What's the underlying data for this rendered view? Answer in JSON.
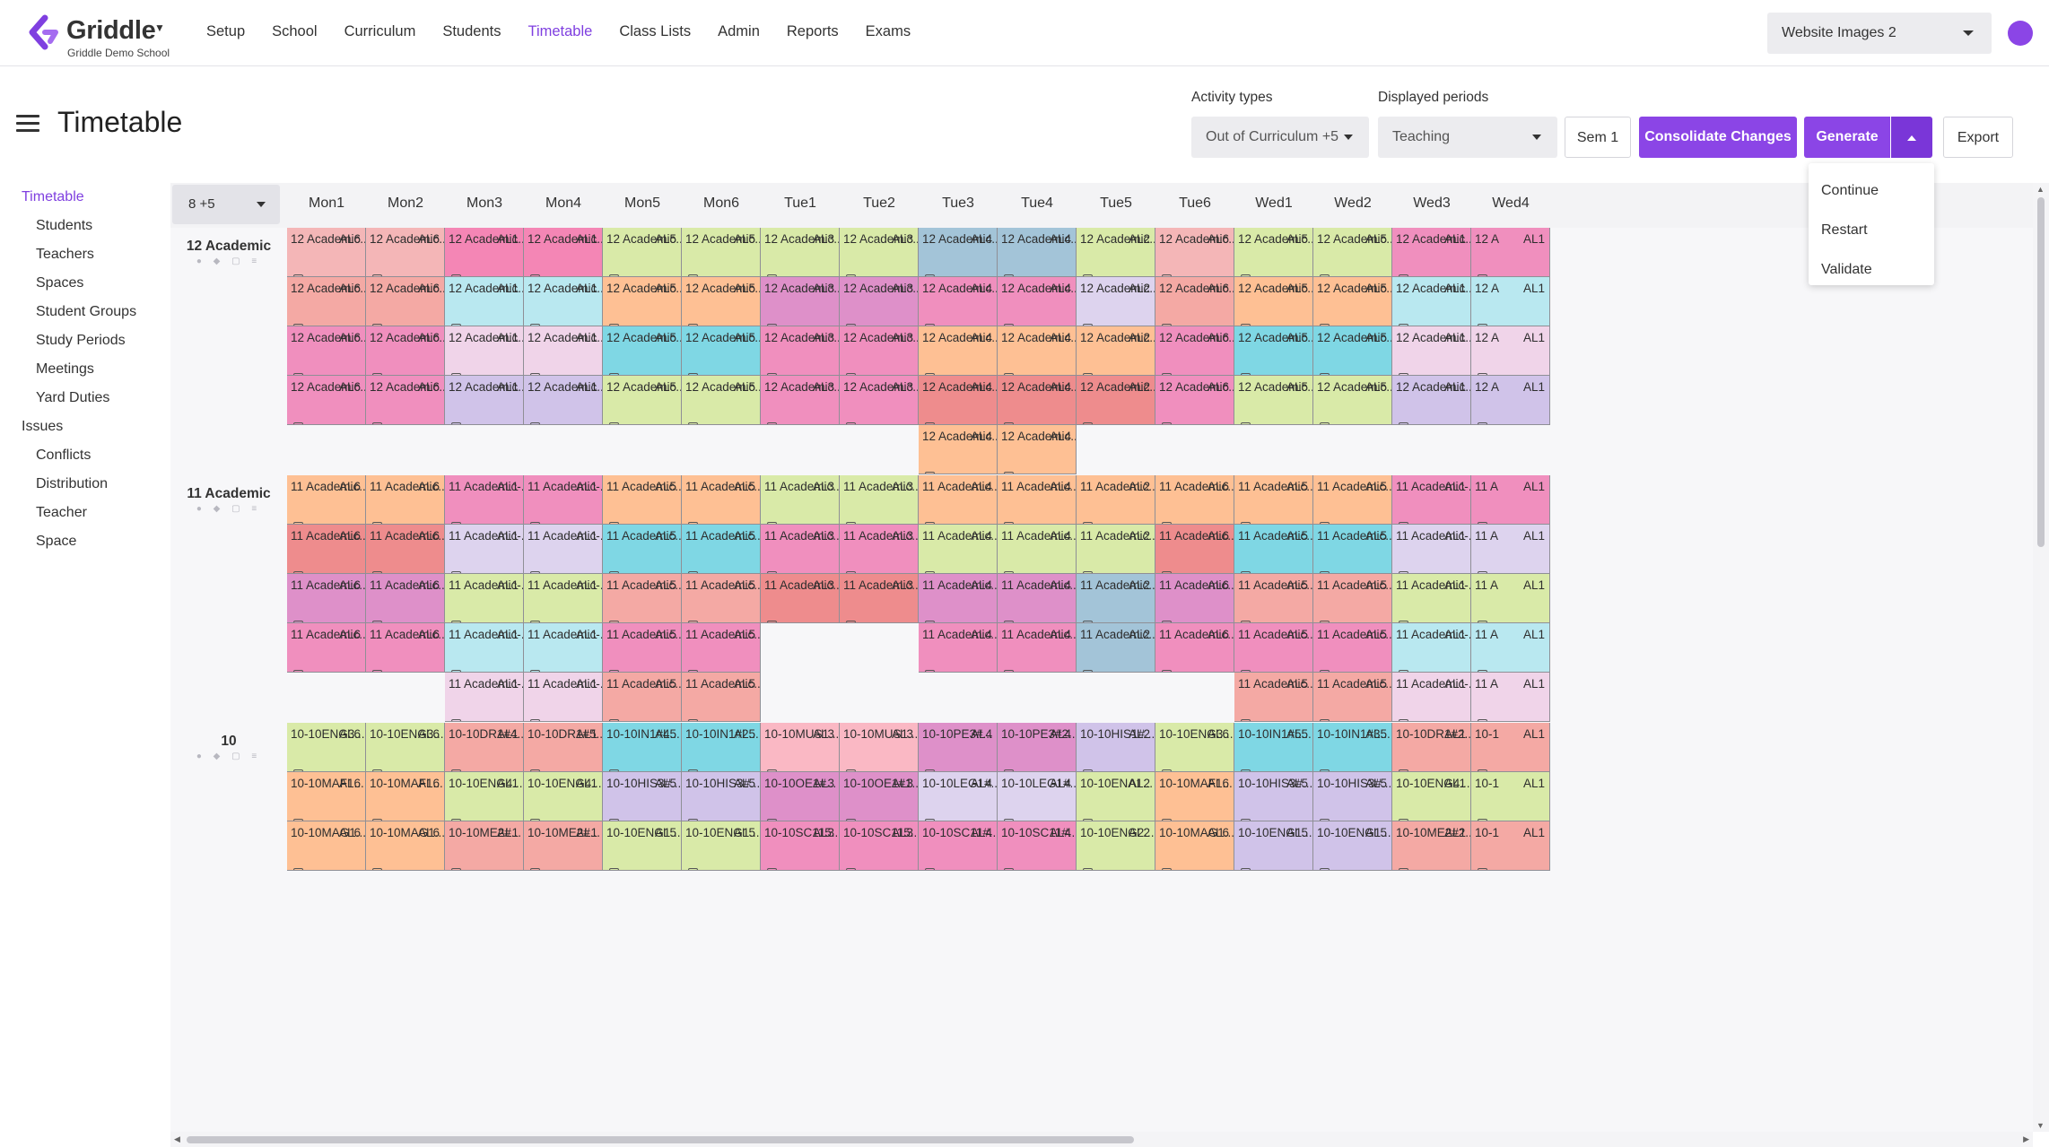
{
  "brand": {
    "name": "Griddle",
    "school": "Griddle Demo School",
    "primary_color": "#8b45e6"
  },
  "nav": {
    "items": [
      "Setup",
      "School",
      "Curriculum",
      "Students",
      "Timetable",
      "Class Lists",
      "Admin",
      "Reports",
      "Exams"
    ],
    "active": "Timetable",
    "workspace": "Website Images 2"
  },
  "header": {
    "title": "Timetable",
    "activity_types_label": "Activity types",
    "activity_types_value": "Out of Curriculum +5",
    "displayed_periods_label": "Displayed periods",
    "displayed_periods_value": "Teaching",
    "sem_button": "Sem 1",
    "consolidate_button": "Consolidate Changes",
    "generate_button": "Generate",
    "export_button": "Export",
    "generate_menu": [
      "Continue",
      "Restart",
      "Validate"
    ]
  },
  "sidebar": {
    "sections": [
      {
        "label": "Timetable",
        "active": true,
        "items": [
          "Students",
          "Teachers",
          "Spaces",
          "Student Groups",
          "Study Periods",
          "Meetings",
          "Yard Duties"
        ]
      },
      {
        "label": "Issues",
        "active": false,
        "items": [
          "Conflicts",
          "Distribution",
          "Teacher",
          "Space"
        ]
      }
    ]
  },
  "grid": {
    "filter": "8 +5",
    "periods": [
      "Mon1",
      "Mon2",
      "Mon3",
      "Mon4",
      "Mon5",
      "Mon6",
      "Tue1",
      "Tue2",
      "Tue3",
      "Tue4",
      "Tue5",
      "Tue6",
      "Wed1",
      "Wed2",
      "Wed3",
      "Wed4"
    ],
    "teachers": [
      "AL6",
      "AL6",
      "AL1",
      "AL1",
      "AL5",
      "AL5",
      "AL3",
      "AL3",
      "AL4",
      "AL4",
      "AL2",
      "AL6",
      "AL5",
      "AL5",
      "AL1",
      "AL1"
    ],
    "colors": {
      "A": "#f4b6b7",
      "B": "#f486b5",
      "C": "#d9eaa8",
      "D": "#a3c4d8",
      "E": "#f08fbe",
      "F": "#f4a9a4",
      "G": "#b9e8f0",
      "H": "#fec094",
      "I": "#de90c9",
      "J": "#ddd3ee",
      "K": "#fab8c4",
      "L": "#7fd7e4",
      "M": "#f0d4e9",
      "N": "#d0c3e9",
      "O": "#ee8c8d"
    },
    "groups": [
      {
        "label": "12 Academic",
        "rows": [
          {
            "names": [
              "12 Academic...",
              "12 Academic...",
              "12 Academic...",
              "12 Academic...",
              "12 Academic...",
              "12 Academic...",
              "12 Academic...",
              "12 Academic...",
              "12 Academic...",
              "12 Academic...",
              "12 Academic...",
              "12 Academic...",
              "12 Academic...",
              "12 Academic...",
              "12 Academic...",
              "12 A"
            ],
            "colors": [
              "A",
              "A",
              "B",
              "B",
              "C",
              "C",
              "C",
              "C",
              "D",
              "D",
              "C",
              "A",
              "C",
              "C",
              "E",
              "E"
            ]
          },
          {
            "names": [
              "12 Academic...",
              "12 Academic...",
              "12 Academic...",
              "12 Academic...",
              "12 Academic...",
              "12 Academic...",
              "12 Academic...",
              "12 Academic...",
              "12 Academic...",
              "12 Academic...",
              "12 Academic...",
              "12 Academic...",
              "12 Academic...",
              "12 Academic...",
              "12 Academic...",
              "12 A"
            ],
            "colors": [
              "F",
              "F",
              "G",
              "G",
              "H",
              "H",
              "I",
              "I",
              "E",
              "E",
              "J",
              "F",
              "H",
              "H",
              "G",
              "G"
            ]
          },
          {
            "names": [
              "12 Academic...",
              "12 Academic...",
              "12 Academic...",
              "12 Academic...",
              "12 Academic...",
              "12 Academic...",
              "12 Academic...",
              "12 Academic...",
              "12 Academic...",
              "12 Academic...",
              "12 Academic...",
              "12 Academic...",
              "12 Academic...",
              "12 Academic...",
              "12 Academic...",
              "12 A"
            ],
            "colors": [
              "E",
              "E",
              "M",
              "M",
              "L",
              "L",
              "E",
              "E",
              "H",
              "H",
              "H",
              "E",
              "L",
              "L",
              "M",
              "M"
            ]
          },
          {
            "names": [
              "12 Academic...",
              "12 Academic...",
              "12 Academic...",
              "12 Academic...",
              "12 Academic...",
              "12 Academic...",
              "12 Academic...",
              "12 Academic...",
              "12 Academic...",
              "12 Academic...",
              "12 Academic...",
              "12 Academic...",
              "12 Academic...",
              "12 Academic...",
              "12 Academic...",
              "12 A"
            ],
            "colors": [
              "E",
              "E",
              "N",
              "N",
              "C",
              "C",
              "E",
              "E",
              "O",
              "O",
              "O",
              "E",
              "C",
              "C",
              "N",
              "N"
            ]
          },
          {
            "names": [
              "",
              "",
              "",
              "",
              "",
              "",
              "",
              "",
              "12 Academic...",
              "12 Academic...",
              "",
              "",
              "",
              "",
              "",
              ""
            ],
            "colors": [
              "",
              "",
              "",
              "",
              "",
              "",
              "",
              "",
              "H",
              "H",
              "",
              "",
              "",
              "",
              "",
              ""
            ]
          }
        ]
      },
      {
        "label": "11 Academic",
        "rows": [
          {
            "names": [
              "11 Academic...",
              "11 Academic...",
              "11 Academic-...",
              "11 Academic-...",
              "11 Academic...",
              "11 Academic...",
              "11 Academic...",
              "11 Academic...",
              "11 Academic...",
              "11 Academic...",
              "11 Academic...",
              "11 Academic...",
              "11 Academic...",
              "11 Academic...",
              "11 Academic-...",
              "11 A"
            ],
            "colors": [
              "H",
              "H",
              "E",
              "E",
              "H",
              "H",
              "C",
              "C",
              "H",
              "H",
              "H",
              "H",
              "H",
              "H",
              "E",
              "E"
            ]
          },
          {
            "names": [
              "11 Academic...",
              "11 Academic...",
              "11 Academic-...",
              "11 Academic-...",
              "11 Academic...",
              "11 Academic...",
              "11 Academic...",
              "11 Academic...",
              "11 Academic...",
              "11 Academic...",
              "11 Academic...",
              "11 Academic...",
              "11 Academic...",
              "11 Academic...",
              "11 Academic-...",
              "11 A"
            ],
            "colors": [
              "O",
              "O",
              "J",
              "J",
              "L",
              "L",
              "E",
              "E",
              "C",
              "C",
              "C",
              "O",
              "L",
              "L",
              "J",
              "J"
            ]
          },
          {
            "names": [
              "11 Academic...",
              "11 Academic...",
              "11 Academic-...",
              "11 Academic-...",
              "11 Academic...",
              "11 Academic...",
              "11 Academic...",
              "11 Academic...",
              "11 Academic...",
              "11 Academic...",
              "11 Academic...",
              "11 Academic...",
              "11 Academic...",
              "11 Academic...",
              "11 Academic-...",
              "11 A"
            ],
            "colors": [
              "I",
              "I",
              "C",
              "C",
              "F",
              "F",
              "O",
              "O",
              "I",
              "I",
              "D",
              "I",
              "F",
              "F",
              "C",
              "C"
            ]
          },
          {
            "names": [
              "11 Academic...",
              "11 Academic...",
              "11 Academic-...",
              "11 Academic-...",
              "11 Academic...",
              "11 Academic...",
              "",
              "",
              "11 Academic...",
              "11 Academic...",
              "11 Academic...",
              "11 Academic...",
              "11 Academic...",
              "11 Academic...",
              "11 Academic-...",
              "11 A"
            ],
            "colors": [
              "E",
              "E",
              "G",
              "G",
              "E",
              "E",
              "",
              "",
              "E",
              "E",
              "D",
              "E",
              "E",
              "E",
              "G",
              "G"
            ]
          },
          {
            "names": [
              "",
              "",
              "11 Academic-...",
              "11 Academic-...",
              "11 Academic...",
              "11 Academic...",
              "",
              "",
              "",
              "",
              "",
              "",
              "11 Academic...",
              "11 Academic...",
              "11 Academic-...",
              "11 A"
            ],
            "colors": [
              "",
              "",
              "M",
              "M",
              "F",
              "F",
              "",
              "",
              "",
              "",
              "",
              "",
              "F",
              "F",
              "M",
              "M"
            ]
          }
        ]
      },
      {
        "label": "10",
        "rows": [
          {
            "names": [
              "10-10ENG3...",
              "10-10ENG3...",
              "10-10DR1#4...",
              "10-10DR1#5...",
              "10-10IN1#4...",
              "10-10IN1#2...",
              "10-10MUS1...",
              "10-10MUS1...",
              "10-10PE3#...",
              "10-10PE3#2...",
              "10-10HIS1#...",
              "10-10ENG3...",
              "10-10IN1#5...",
              "10-10IN1#3...",
              "10-10DR1#2...",
              "10-1"
            ],
            "colors": [
              "C",
              "C",
              "F",
              "F",
              "L",
              "L",
              "K",
              "K",
              "I",
              "I",
              "N",
              "C",
              "L",
              "L",
              "F",
              "F"
            ]
          },
          {
            "names": [
              "10-10MAF1...",
              "10-10MAF1...",
              "10-10ENG4...",
              "10-10ENG4...",
              "10-10HIS3#...",
              "10-10HIS3#...",
              "10-10OE1#...",
              "10-10OE1#1...",
              "10-10LEG1#...",
              "10-10LEG1#...",
              "10-10ENA1...",
              "10-10MAF1...",
              "10-10HIS3#...",
              "10-10HIS3#...",
              "10-10ENG4...",
              "10-1"
            ],
            "colors": [
              "H",
              "H",
              "C",
              "C",
              "N",
              "N",
              "I",
              "I",
              "J",
              "J",
              "C",
              "H",
              "N",
              "N",
              "C",
              "C"
            ]
          },
          {
            "names": [
              "10-10MAG1...",
              "10-10MAG1...",
              "10-10ME2#...",
              "10-10ME2#...",
              "10-10ENG1...",
              "10-10ENG1...",
              "10-10SC115...",
              "10-10SC115...",
              "10-10SC11#...",
              "10-10SC11#...",
              "10-10ENG2...",
              "10-10MAG1...",
              "10-10ENG1...",
              "10-10ENG1...",
              "10-10ME2#2...",
              "10-1"
            ],
            "colors": [
              "H",
              "H",
              "F",
              "F",
              "C",
              "C",
              "E",
              "E",
              "E",
              "E",
              "C",
              "H",
              "N",
              "N",
              "F",
              "F"
            ]
          }
        ]
      }
    ]
  }
}
